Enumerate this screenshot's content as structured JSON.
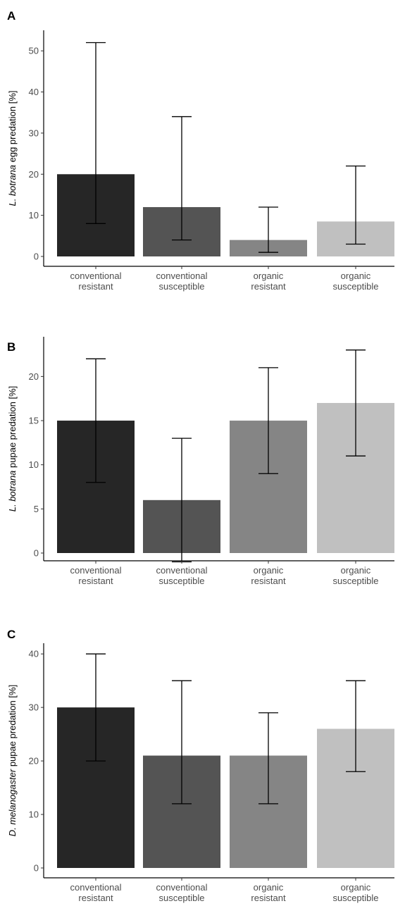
{
  "chart_data": [
    {
      "type": "bar",
      "panel": "A",
      "ylabel_italic": "L. botrana",
      "ylabel_rest": " egg predation [%]",
      "categories": [
        [
          "conventional",
          "resistant"
        ],
        [
          "conventional",
          "susceptible"
        ],
        [
          "organic",
          "resistant"
        ],
        [
          "organic",
          "susceptible"
        ]
      ],
      "values": [
        20,
        12,
        4,
        8.5
      ],
      "error_low": [
        8,
        4,
        1,
        3
      ],
      "error_high": [
        52,
        34,
        12,
        22
      ],
      "colors": [
        "#262626",
        "#545454",
        "#858585",
        "#c0c0c0"
      ],
      "yticks": [
        0,
        10,
        20,
        30,
        40,
        50
      ],
      "ylim": [
        -2,
        55
      ],
      "grid": false
    },
    {
      "type": "bar",
      "panel": "B",
      "ylabel_italic": "L. botrana",
      "ylabel_rest": " pupae predation [%]",
      "categories": [
        [
          "conventional",
          "resistant"
        ],
        [
          "conventional",
          "susceptible"
        ],
        [
          "organic",
          "resistant"
        ],
        [
          "organic",
          "susceptible"
        ]
      ],
      "values": [
        15,
        6,
        15,
        17
      ],
      "error_low": [
        8,
        -1,
        9,
        11
      ],
      "error_high": [
        22,
        13,
        21,
        23
      ],
      "colors": [
        "#262626",
        "#545454",
        "#858585",
        "#c0c0c0"
      ],
      "yticks": [
        0,
        5,
        10,
        15,
        20
      ],
      "ylim": [
        -2,
        24.5
      ],
      "grid": false
    },
    {
      "type": "bar",
      "panel": "C",
      "ylabel_italic": "D. melanogaster",
      "ylabel_rest": " pupae predation [%]",
      "categories": [
        [
          "conventional",
          "resistant"
        ],
        [
          "conventional",
          "susceptible"
        ],
        [
          "organic",
          "resistant"
        ],
        [
          "organic",
          "susceptible"
        ]
      ],
      "values": [
        30,
        21,
        21,
        26
      ],
      "error_low": [
        20,
        12,
        12,
        18
      ],
      "error_high": [
        40,
        35,
        29,
        35
      ],
      "colors": [
        "#262626",
        "#545454",
        "#858585",
        "#c0c0c0"
      ],
      "yticks": [
        0,
        10,
        20,
        30,
        40
      ],
      "ylim": [
        -2,
        42
      ],
      "grid": false
    }
  ]
}
